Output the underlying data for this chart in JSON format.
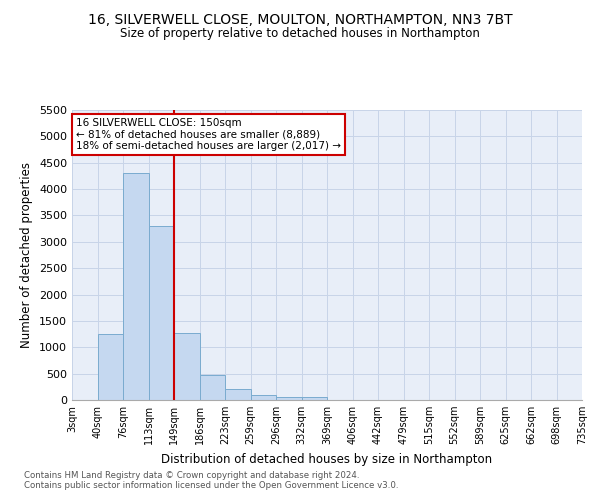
{
  "title": "16, SILVERWELL CLOSE, MOULTON, NORTHAMPTON, NN3 7BT",
  "subtitle": "Size of property relative to detached houses in Northampton",
  "xlabel": "Distribution of detached houses by size in Northampton",
  "ylabel": "Number of detached properties",
  "bar_color": "#c5d8f0",
  "bar_edge_color": "#7aabcf",
  "background_color": "#ffffff",
  "plot_bg_color": "#e8eef8",
  "grid_color": "#c8d4e8",
  "annotation_line_color": "#cc0000",
  "annotation_box_text": "16 SILVERWELL CLOSE: 150sqm\n← 81% of detached houses are smaller (8,889)\n18% of semi-detached houses are larger (2,017) →",
  "categories": [
    "3sqm",
    "40sqm",
    "76sqm",
    "113sqm",
    "149sqm",
    "186sqm",
    "223sqm",
    "259sqm",
    "296sqm",
    "332sqm",
    "369sqm",
    "406sqm",
    "442sqm",
    "479sqm",
    "515sqm",
    "552sqm",
    "589sqm",
    "625sqm",
    "662sqm",
    "698sqm",
    "735sqm"
  ],
  "bar_values": [
    0,
    1250,
    4300,
    3300,
    1280,
    480,
    200,
    90,
    60,
    50,
    0,
    0,
    0,
    0,
    0,
    0,
    0,
    0,
    0,
    0,
    0
  ],
  "ylim": [
    0,
    5500
  ],
  "yticks": [
    0,
    500,
    1000,
    1500,
    2000,
    2500,
    3000,
    3500,
    4000,
    4500,
    5000,
    5500
  ],
  "footnote": "Contains HM Land Registry data © Crown copyright and database right 2024.\nContains public sector information licensed under the Open Government Licence v3.0.",
  "figsize": [
    6.0,
    5.0
  ],
  "dpi": 100
}
